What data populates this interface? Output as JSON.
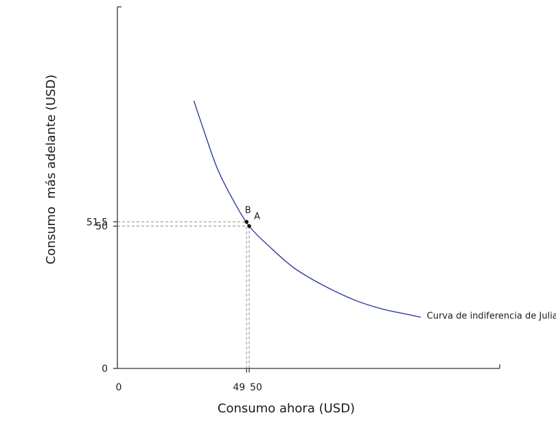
{
  "chart_data": {
    "type": "line",
    "title": "",
    "xlabel": "Consumo ahora (USD)",
    "ylabel": "Consumo  más adelante (USD)",
    "x_ticks": [
      {
        "value": 0,
        "label": "0"
      },
      {
        "value": 49,
        "label": "49"
      },
      {
        "value": 50,
        "label": "50"
      }
    ],
    "y_ticks": [
      {
        "value": 0,
        "label": "0"
      },
      {
        "value": 50,
        "label": "50"
      },
      {
        "value": 51.5,
        "label": "51,5"
      }
    ],
    "xlim": [
      0,
      145
    ],
    "ylim": [
      0,
      127
    ],
    "grid": false,
    "series": [
      {
        "name": "Curva de indiferencia de Julia",
        "color": "#2e3c9c",
        "x": [
          29,
          33,
          38,
          44,
          50,
          58,
          67,
          78,
          90,
          100,
          110,
          115
        ],
        "y": [
          94,
          83,
          70,
          59,
          50,
          42.5,
          35.3,
          29.2,
          24,
          21,
          19,
          18
        ]
      }
    ],
    "points": [
      {
        "label": "B",
        "x": 49,
        "y": 51.5
      },
      {
        "label": "A",
        "x": 50,
        "y": 50
      }
    ]
  }
}
